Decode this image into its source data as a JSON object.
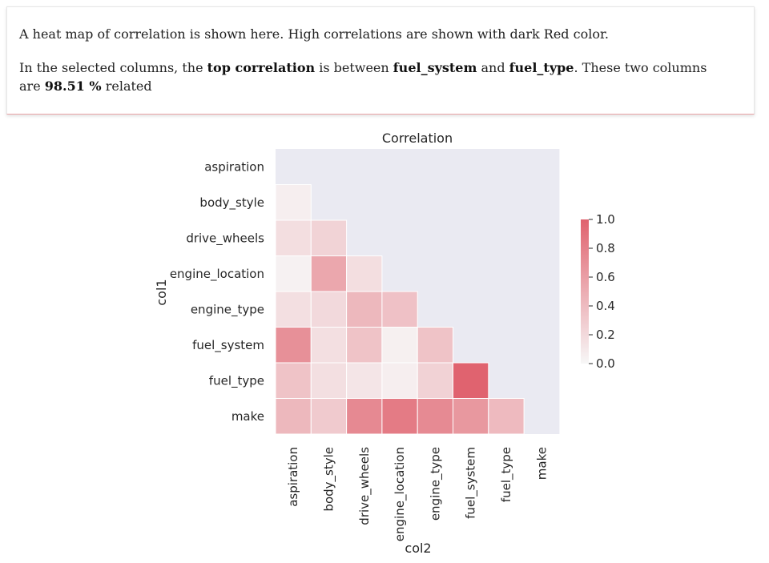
{
  "description": {
    "line1": "A heat map of correlation is shown here. High correlations are shown with dark Red color.",
    "line2_prefix": "In the selected columns, the ",
    "line2_strong1": "top correlation",
    "line2_mid1": " is between ",
    "line2_col_a": "fuel_system",
    "line2_mid2": " and ",
    "line2_col_b": "fuel_type",
    "line2_mid3": ". These two columns are ",
    "line2_value": "98.51 %",
    "line2_suffix": " related"
  },
  "chart_data": {
    "type": "heatmap",
    "title": "Correlation",
    "xlabel": "col2",
    "ylabel": "col1",
    "rows": [
      "aspiration",
      "body_style",
      "drive_wheels",
      "engine_location",
      "engine_type",
      "fuel_system",
      "fuel_type",
      "make"
    ],
    "cols": [
      "aspiration",
      "body_style",
      "drive_wheels",
      "engine_location",
      "engine_type",
      "fuel_system",
      "fuel_type",
      "make"
    ],
    "values": [
      [
        null,
        null,
        null,
        null,
        null,
        null,
        null,
        null
      ],
      [
        0.06,
        null,
        null,
        null,
        null,
        null,
        null,
        null
      ],
      [
        0.17,
        0.24,
        null,
        null,
        null,
        null,
        null,
        null
      ],
      [
        0.04,
        0.54,
        0.17,
        null,
        null,
        null,
        null,
        null
      ],
      [
        0.16,
        0.2,
        0.42,
        0.36,
        null,
        null,
        null,
        null
      ],
      [
        0.69,
        0.16,
        0.35,
        0.05,
        0.35,
        null,
        null,
        null
      ],
      [
        0.35,
        0.16,
        0.12,
        0.06,
        0.25,
        0.99,
        null,
        null
      ],
      [
        0.42,
        0.3,
        0.74,
        0.83,
        0.73,
        0.64,
        0.41,
        null
      ]
    ],
    "colorbar": {
      "ticks": [
        "0.0",
        "0.2",
        "0.4",
        "0.6",
        "0.8",
        "1.0"
      ],
      "min": 0,
      "max": 1
    },
    "colors": {
      "low": "#f7f7f7",
      "high": "#e0626e",
      "masked": "#eaeaf2"
    },
    "grid": false
  }
}
